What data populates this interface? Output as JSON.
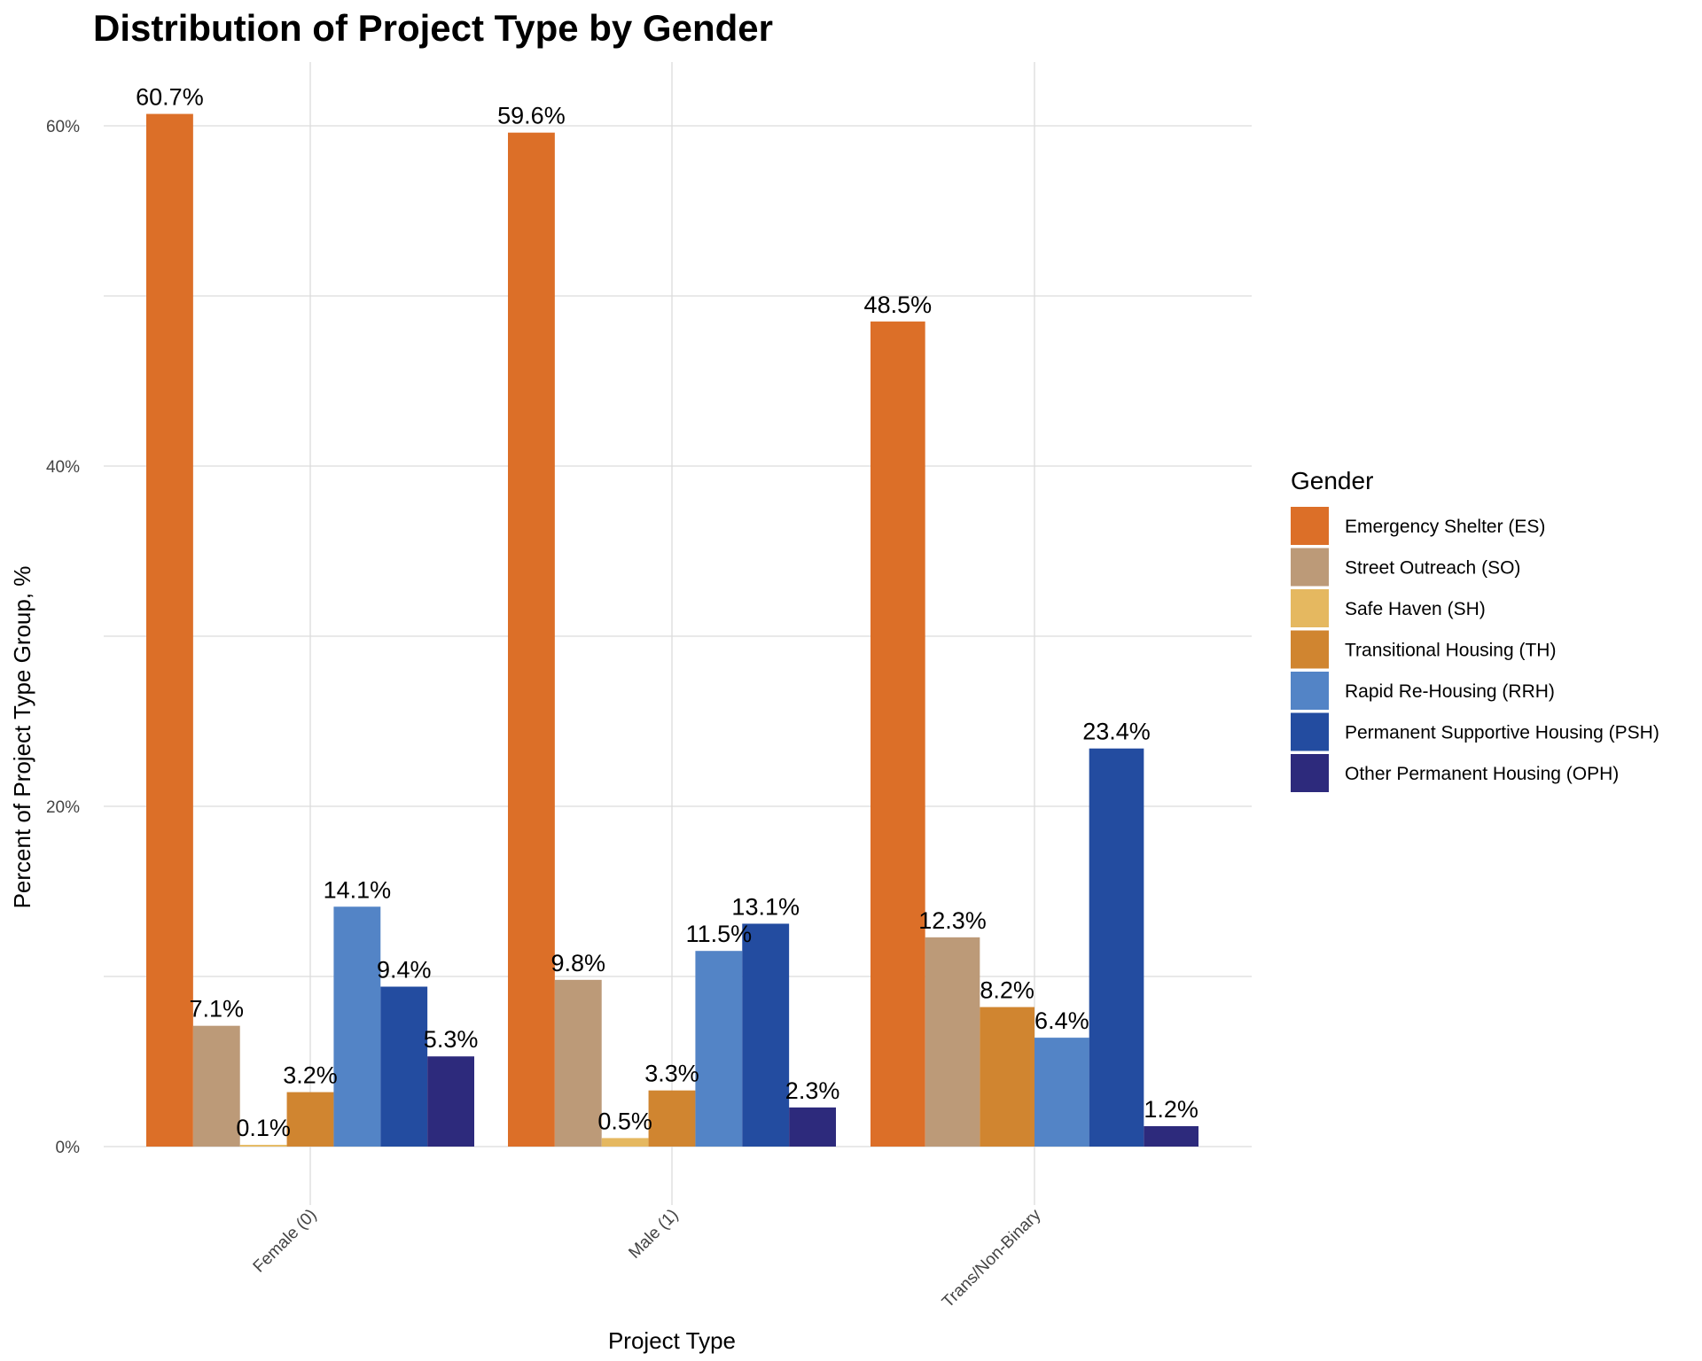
{
  "chart_data": {
    "type": "bar",
    "title": "Distribution of Project Type by Gender",
    "xlabel": "Project Type",
    "ylabel": "Percent of Project Type Group, %",
    "categories": [
      "Female (0)",
      "Male (1)",
      "Trans/Non-Binary"
    ],
    "ylim": [
      0,
      60
    ],
    "y_ticks": [
      "0%",
      "20%",
      "40%",
      "60%"
    ],
    "grid": true,
    "legend": {
      "title": "Gender",
      "position": "right"
    },
    "series": [
      {
        "name": "Emergency Shelter (ES)",
        "color": "#DC6F28",
        "values": [
          60.7,
          59.6,
          48.5
        ],
        "labels": [
          "60.7%",
          "59.6%",
          "48.5%"
        ]
      },
      {
        "name": "Street Outreach (SO)",
        "color": "#BC9A78",
        "values": [
          7.1,
          9.8,
          12.3
        ],
        "labels": [
          "7.1%",
          "9.8%",
          "12.3%"
        ]
      },
      {
        "name": "Safe Haven (SH)",
        "color": "#E5B860",
        "values": [
          0.1,
          0.5,
          0
        ],
        "labels": [
          "0.1%",
          "0.5%",
          ""
        ]
      },
      {
        "name": "Transitional Housing (TH)",
        "color": "#D08530",
        "values": [
          3.2,
          3.3,
          8.2
        ],
        "labels": [
          "3.2%",
          "3.3%",
          "8.2%"
        ]
      },
      {
        "name": "Rapid Re-Housing (RRH)",
        "color": "#5384C6",
        "values": [
          14.1,
          11.5,
          6.4
        ],
        "labels": [
          "14.1%",
          "11.5%",
          "6.4%"
        ]
      },
      {
        "name": "Permanent Supportive Housing (PSH)",
        "color": "#234CA0",
        "values": [
          9.4,
          13.1,
          23.4
        ],
        "labels": [
          "9.4%",
          "13.1%",
          "23.4%"
        ]
      },
      {
        "name": "Other Permanent Housing (OPH)",
        "color": "#2D2A7C",
        "values": [
          5.3,
          2.3,
          1.2
        ],
        "labels": [
          "5.3%",
          "2.3%",
          "1.2%"
        ]
      }
    ]
  }
}
